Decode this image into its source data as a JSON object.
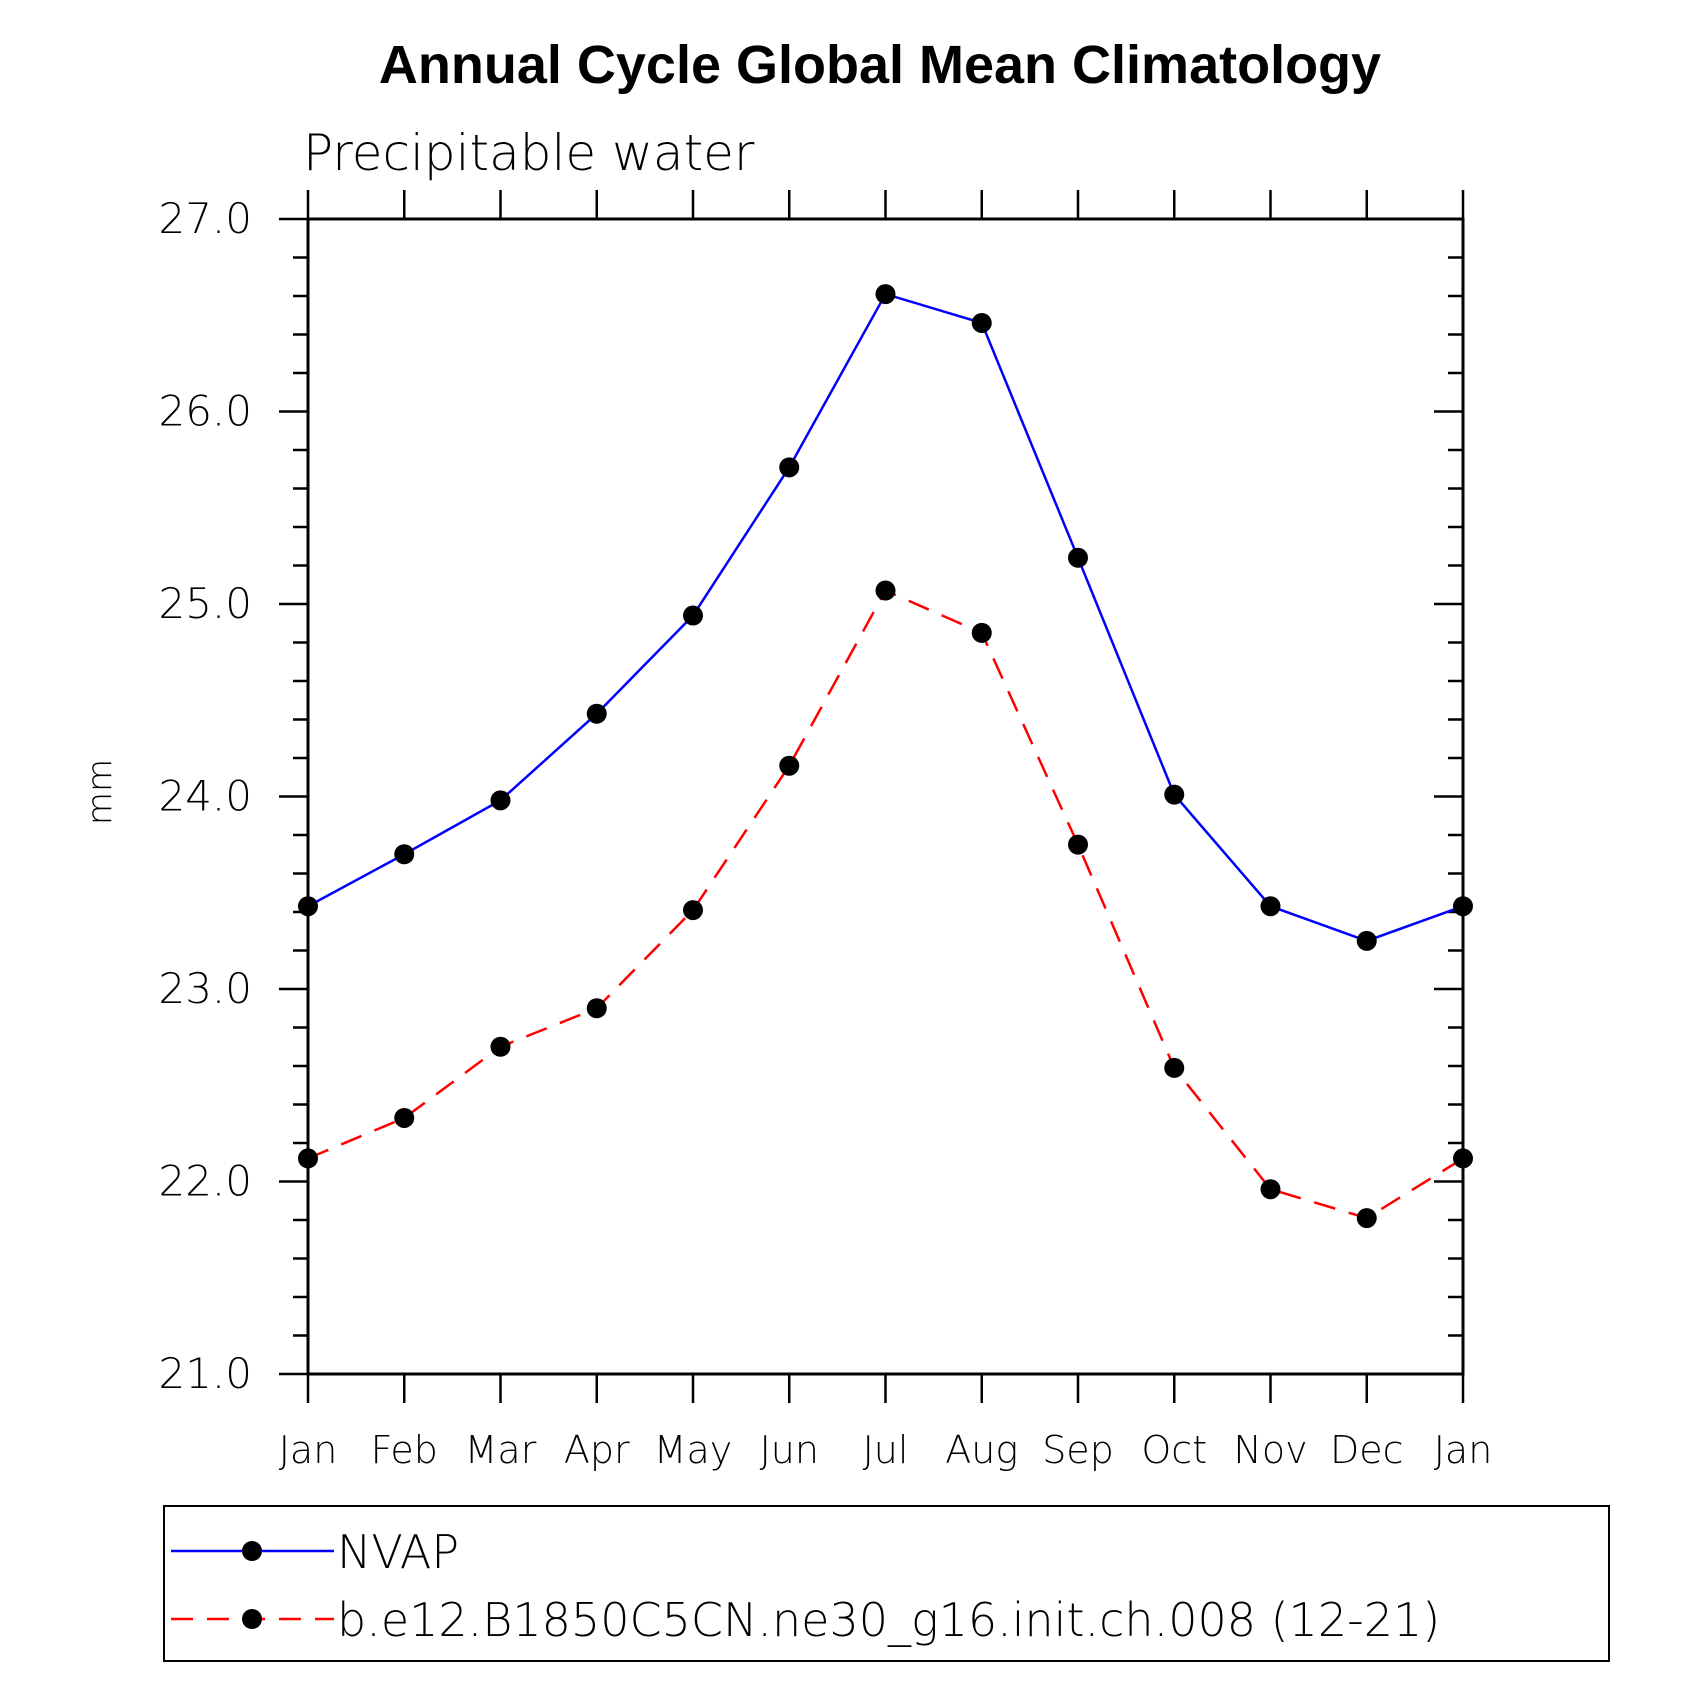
{
  "chart_data": {
    "type": "line",
    "title": "Annual Cycle Global Mean Climatology",
    "subtitle": "Precipitable water",
    "xlabel": "",
    "ylabel": "mm",
    "categories": [
      "Jan",
      "Feb",
      "Mar",
      "Apr",
      "May",
      "Jun",
      "Jul",
      "Aug",
      "Sep",
      "Oct",
      "Nov",
      "Dec",
      "Jan"
    ],
    "ylim": [
      21.0,
      27.0
    ],
    "yticks": [
      "21.0",
      "22.0",
      "23.0",
      "24.0",
      "25.0",
      "26.0",
      "27.0"
    ],
    "grid": false,
    "legend_position": "bottom",
    "series": [
      {
        "name": "NVAP",
        "color": "#0000ff",
        "line_style": "solid",
        "marker": "filled-circle",
        "values": [
          23.43,
          23.7,
          23.98,
          24.43,
          24.94,
          25.71,
          26.61,
          26.46,
          25.24,
          24.01,
          23.43,
          23.25,
          23.43
        ]
      },
      {
        "name": "b.e12.B1850C5CN.ne30_g16.init.ch.008 (12-21)",
        "color": "#ff0000",
        "line_style": "dashed",
        "marker": "filled-circle",
        "values": [
          22.12,
          22.33,
          22.7,
          22.9,
          23.41,
          24.16,
          25.07,
          24.85,
          23.75,
          22.59,
          21.96,
          21.81,
          22.12
        ]
      }
    ]
  }
}
